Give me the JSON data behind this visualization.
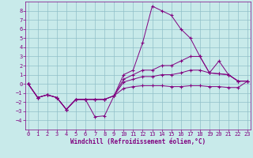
{
  "xlabel": "Windchill (Refroidissement éolien,°C)",
  "x": [
    0,
    1,
    2,
    3,
    4,
    5,
    6,
    7,
    8,
    9,
    10,
    11,
    12,
    13,
    14,
    15,
    16,
    17,
    18,
    19,
    20,
    21,
    22,
    23
  ],
  "line1": [
    0,
    -1.5,
    -1.2,
    -1.5,
    -2.8,
    -1.7,
    -1.7,
    -3.6,
    -3.5,
    -1.3,
    1.0,
    1.5,
    4.5,
    8.5,
    8.0,
    7.5,
    6.0,
    5.0,
    3.0,
    1.2,
    2.5,
    1.0,
    0.3,
    0.3
  ],
  "line2": [
    0,
    -1.5,
    -1.2,
    -1.5,
    -2.8,
    -1.7,
    -1.7,
    -1.7,
    -1.7,
    -1.3,
    0.5,
    1.0,
    1.5,
    1.5,
    2.0,
    2.0,
    2.5,
    3.0,
    3.0,
    1.2,
    1.1,
    1.0,
    0.3,
    0.3
  ],
  "line3": [
    0,
    -1.5,
    -1.2,
    -1.5,
    -2.8,
    -1.7,
    -1.7,
    -1.7,
    -1.7,
    -1.3,
    0.2,
    0.5,
    0.8,
    0.8,
    1.0,
    1.0,
    1.2,
    1.5,
    1.5,
    1.2,
    1.1,
    1.0,
    0.3,
    0.3
  ],
  "line4": [
    0,
    -1.5,
    -1.2,
    -1.5,
    -2.8,
    -1.7,
    -1.7,
    -1.7,
    -1.7,
    -1.3,
    -0.5,
    -0.3,
    -0.2,
    -0.2,
    -0.2,
    -0.3,
    -0.3,
    -0.2,
    -0.2,
    -0.3,
    -0.3,
    -0.4,
    -0.4,
    0.3
  ],
  "line_color": "#800080",
  "bg_color": "#c8eaea",
  "grid_color": "#90c0c8",
  "ylim": [
    -5,
    9
  ],
  "xlim": [
    -0.3,
    23.3
  ],
  "yticks": [
    -4,
    -3,
    -2,
    -1,
    0,
    1,
    2,
    3,
    4,
    5,
    6,
    7,
    8
  ],
  "xticks": [
    0,
    1,
    2,
    3,
    4,
    5,
    6,
    7,
    8,
    9,
    10,
    11,
    12,
    13,
    14,
    15,
    16,
    17,
    18,
    19,
    20,
    21,
    22,
    23
  ],
  "tick_fontsize": 5.0,
  "xlabel_fontsize": 5.5
}
